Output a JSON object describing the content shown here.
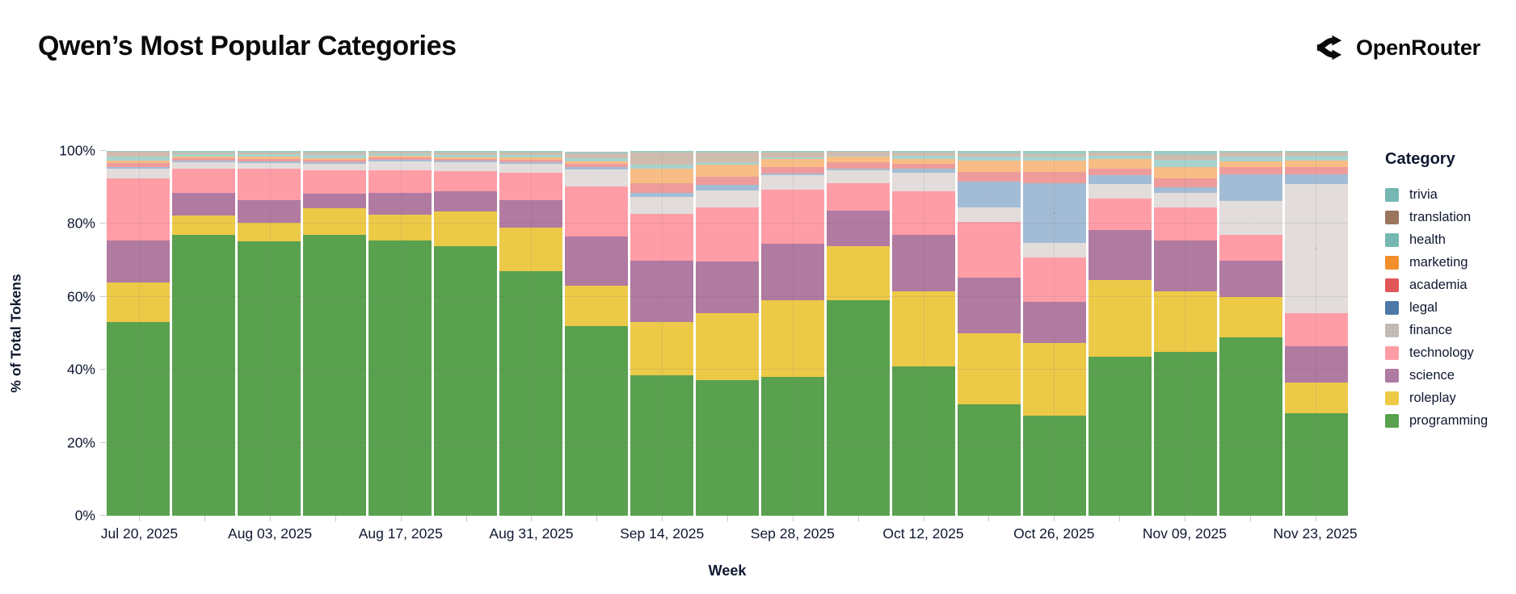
{
  "header": {
    "title": "Qwen’s Most Popular Categories",
    "brand": {
      "name": "OpenRouter"
    }
  },
  "chart_data": {
    "type": "bar",
    "stacked": true,
    "normalized": true,
    "title": "Qwen’s Most Popular Categories",
    "xlabel": "Week",
    "ylabel": "% of Total Tokens",
    "ylim": [
      0,
      100
    ],
    "yticks": [
      0,
      20,
      40,
      60,
      80,
      100
    ],
    "ytick_labels": [
      "0%",
      "20%",
      "40%",
      "60%",
      "80%",
      "100%"
    ],
    "label_every": 2,
    "grid": true,
    "legend_title": "Category",
    "legend_position": "right",
    "legend_order": "reverse-of-stack",
    "categories": [
      "Jul 20, 2025",
      "Jul 27, 2025",
      "Aug 03, 2025",
      "Aug 10, 2025",
      "Aug 17, 2025",
      "Aug 24, 2025",
      "Aug 31, 2025",
      "Sep 07, 2025",
      "Sep 14, 2025",
      "Sep 21, 2025",
      "Sep 28, 2025",
      "Oct 05, 2025",
      "Oct 12, 2025",
      "Oct 19, 2025",
      "Oct 26, 2025",
      "Nov 02, 2025",
      "Nov 09, 2025",
      "Nov 16, 2025",
      "Nov 23, 2025"
    ],
    "series": [
      {
        "name": "programming",
        "legend_color": "#59a14f",
        "bar_color": "#59a14f",
        "dotted": false,
        "values": [
          53,
          77,
          75.3,
          77,
          75.5,
          74,
          67,
          52,
          38.5,
          37.1,
          38,
          59,
          41,
          30.5,
          27.5,
          43.5,
          45,
          49,
          28
        ]
      },
      {
        "name": "roleplay",
        "legend_color": "#edc948",
        "bar_color": "#edc948",
        "dotted": false,
        "values": [
          11,
          5.2,
          5.1,
          7.4,
          7.0,
          9.5,
          12,
          11,
          14.7,
          18.5,
          21,
          14.9,
          20.5,
          19.5,
          19.9,
          21,
          16.5,
          11,
          8.5
        ]
      },
      {
        "name": "science",
        "legend_color": "#b07aa1",
        "bar_color": "#b07aa1",
        "dotted": false,
        "values": [
          11.5,
          6.3,
          6.2,
          3.9,
          6.0,
          5.5,
          7.5,
          13.6,
          16.7,
          14.2,
          15.6,
          9.8,
          15.6,
          15.2,
          11.2,
          13.8,
          14,
          10,
          10
        ]
      },
      {
        "name": "technology",
        "legend_color": "#ff9da7",
        "bar_color": "#ff9da7",
        "dotted": false,
        "values": [
          17,
          6.6,
          8.5,
          6.4,
          6.2,
          5.5,
          7.5,
          13.6,
          12.8,
          14.8,
          14.9,
          7.5,
          11.9,
          15.4,
          12.3,
          8.6,
          9,
          7,
          9
        ]
      },
      {
        "name": "finance",
        "legend_color": "#c6beb9",
        "bar_color": "#e2ddda",
        "dotted": true,
        "dot_color": "rgba(154,143,137,0.35)",
        "values": [
          2.7,
          1.9,
          1.7,
          1.8,
          2.5,
          2.5,
          2.5,
          4.8,
          4.7,
          4.6,
          3.8,
          3.5,
          5.0,
          4.0,
          3.8,
          4.1,
          4.0,
          9.2,
          35.5
        ]
      },
      {
        "name": "legal",
        "legend_color": "#4e79a7",
        "bar_color": "#a3bcd6",
        "dotted": true,
        "dot_color": "rgba(78,121,167,0.35)",
        "values": [
          0.4,
          0.4,
          0.4,
          0.4,
          0.4,
          0.3,
          0.4,
          0.5,
          1.1,
          1.5,
          0.5,
          0.5,
          1.1,
          7.0,
          16.5,
          2.3,
          1.5,
          7.3,
          2.5
        ]
      },
      {
        "name": "academia",
        "legend_color": "#e15759",
        "bar_color": "#ee9c9b",
        "dotted": false,
        "values": [
          1.0,
          0.6,
          0.7,
          0.7,
          0.6,
          0.5,
          0.7,
          0.9,
          2.6,
          2.2,
          1.7,
          1.8,
          1.3,
          2.7,
          3.0,
          1.9,
          2.5,
          2.2,
          2.0
        ]
      },
      {
        "name": "marketing",
        "legend_color": "#f28e2b",
        "bar_color": "#f7bd85",
        "dotted": false,
        "values": [
          0.8,
          0.4,
          0.5,
          0.5,
          0.5,
          0.5,
          0.6,
          0.8,
          4.0,
          3.3,
          2.2,
          1.4,
          1.5,
          3.0,
          3.2,
          2.5,
          3.0,
          1.5,
          1.8
        ]
      },
      {
        "name": "health",
        "legend_color": "#76b7b2",
        "bar_color": "#a8d2cd",
        "dotted": false,
        "values": [
          1.1,
          0.8,
          0.7,
          0.8,
          0.6,
          0.7,
          0.8,
          0.9,
          1.1,
          0.8,
          0.5,
          0.3,
          0.8,
          1.1,
          1.0,
          1.0,
          2.0,
          1.3,
          1.5
        ]
      },
      {
        "name": "translation",
        "legend_color": "#9c755f",
        "bar_color": "#cfbcae",
        "dotted": true,
        "dot_color": "rgba(156,117,95,0.35)",
        "values": [
          1.2,
          0.4,
          0.5,
          0.7,
          0.4,
          0.6,
          0.6,
          1.3,
          3.3,
          2.5,
          1.4,
          1.1,
          0.8,
          1.0,
          0.8,
          0.8,
          1.5,
          1.0,
          0.7
        ]
      },
      {
        "name": "trivia",
        "legend_color": "#76b7b2",
        "bar_color": "#9ccac5",
        "dotted": false,
        "values": [
          0.3,
          0.4,
          0.4,
          0.4,
          0.3,
          0.4,
          0.4,
          0.5,
          0.5,
          0.5,
          0.4,
          0.2,
          0.5,
          0.6,
          0.8,
          0.5,
          1.0,
          0.5,
          0.5
        ]
      }
    ]
  }
}
